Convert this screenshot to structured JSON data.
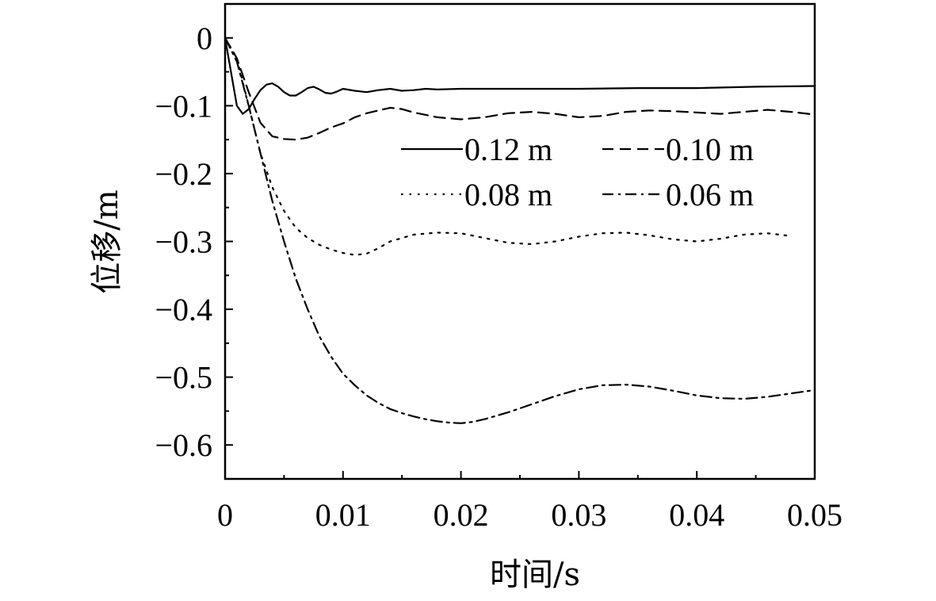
{
  "chart_data": {
    "type": "line",
    "xlabel": "时间/s",
    "ylabel": "位移/m",
    "xlim": [
      0,
      0.05
    ],
    "ylim": [
      -0.65,
      0.05
    ],
    "xticks": [
      0,
      0.01,
      0.02,
      0.03,
      0.04,
      0.05
    ],
    "xtick_labels": [
      "0",
      "0.01",
      "0.02",
      "0.03",
      "0.04",
      "0.05"
    ],
    "yticks": [
      0,
      -0.1,
      -0.2,
      -0.3,
      -0.4,
      -0.5,
      -0.6
    ],
    "ytick_labels": [
      "0",
      "−0.1",
      "−0.2",
      "−0.3",
      "−0.4",
      "−0.5",
      "−0.6"
    ],
    "grid": false,
    "legend_position": "top-right",
    "series": [
      {
        "name": "0.12 m",
        "style": "solid",
        "x": [
          0,
          0.0005,
          0.001,
          0.0015,
          0.002,
          0.0025,
          0.003,
          0.0035,
          0.004,
          0.0045,
          0.005,
          0.0055,
          0.006,
          0.0065,
          0.007,
          0.0075,
          0.008,
          0.0085,
          0.009,
          0.0095,
          0.01,
          0.011,
          0.012,
          0.013,
          0.014,
          0.015,
          0.016,
          0.017,
          0.018,
          0.02,
          0.025,
          0.03,
          0.035,
          0.04,
          0.045,
          0.05
        ],
        "y": [
          0,
          -0.05,
          -0.1,
          -0.112,
          -0.105,
          -0.09,
          -0.077,
          -0.069,
          -0.067,
          -0.072,
          -0.08,
          -0.085,
          -0.085,
          -0.08,
          -0.074,
          -0.072,
          -0.076,
          -0.081,
          -0.082,
          -0.079,
          -0.075,
          -0.078,
          -0.08,
          -0.077,
          -0.075,
          -0.078,
          -0.077,
          -0.075,
          -0.076,
          -0.075,
          -0.075,
          -0.075,
          -0.074,
          -0.074,
          -0.072,
          -0.071
        ]
      },
      {
        "name": "0.10 m",
        "style": "dashed",
        "x": [
          0,
          0.001,
          0.002,
          0.003,
          0.004,
          0.005,
          0.006,
          0.007,
          0.008,
          0.009,
          0.01,
          0.011,
          0.012,
          0.013,
          0.014,
          0.015,
          0.016,
          0.018,
          0.02,
          0.022,
          0.024,
          0.026,
          0.028,
          0.03,
          0.032,
          0.034,
          0.036,
          0.038,
          0.04,
          0.042,
          0.044,
          0.046,
          0.048,
          0.05
        ],
        "y": [
          0,
          -0.03,
          -0.08,
          -0.125,
          -0.145,
          -0.149,
          -0.15,
          -0.147,
          -0.14,
          -0.132,
          -0.126,
          -0.117,
          -0.111,
          -0.107,
          -0.103,
          -0.105,
          -0.11,
          -0.117,
          -0.12,
          -0.117,
          -0.111,
          -0.109,
          -0.112,
          -0.117,
          -0.115,
          -0.109,
          -0.107,
          -0.108,
          -0.11,
          -0.112,
          -0.109,
          -0.106,
          -0.109,
          -0.113
        ]
      },
      {
        "name": "0.08 m",
        "style": "dotted",
        "x": [
          0,
          0.001,
          0.002,
          0.003,
          0.004,
          0.005,
          0.006,
          0.007,
          0.008,
          0.009,
          0.01,
          0.011,
          0.012,
          0.013,
          0.014,
          0.015,
          0.016,
          0.018,
          0.02,
          0.022,
          0.024,
          0.026,
          0.028,
          0.03,
          0.032,
          0.034,
          0.036,
          0.038,
          0.04,
          0.042,
          0.044,
          0.046,
          0.048
        ],
        "y": [
          0,
          -0.03,
          -0.1,
          -0.17,
          -0.22,
          -0.255,
          -0.28,
          -0.295,
          -0.305,
          -0.312,
          -0.317,
          -0.32,
          -0.318,
          -0.31,
          -0.3,
          -0.295,
          -0.29,
          -0.287,
          -0.288,
          -0.295,
          -0.302,
          -0.304,
          -0.3,
          -0.293,
          -0.288,
          -0.287,
          -0.291,
          -0.297,
          -0.3,
          -0.296,
          -0.29,
          -0.288,
          -0.292
        ]
      },
      {
        "name": "0.06 m",
        "style": "dashdot",
        "x": [
          0,
          0.001,
          0.002,
          0.003,
          0.004,
          0.005,
          0.006,
          0.007,
          0.008,
          0.009,
          0.01,
          0.011,
          0.012,
          0.013,
          0.014,
          0.015,
          0.016,
          0.017,
          0.018,
          0.019,
          0.02,
          0.021,
          0.022,
          0.024,
          0.026,
          0.028,
          0.03,
          0.032,
          0.034,
          0.036,
          0.038,
          0.04,
          0.042,
          0.044,
          0.046,
          0.048,
          0.05
        ],
        "y": [
          0,
          -0.035,
          -0.1,
          -0.17,
          -0.24,
          -0.3,
          -0.355,
          -0.4,
          -0.44,
          -0.47,
          -0.495,
          -0.512,
          -0.527,
          -0.538,
          -0.547,
          -0.553,
          -0.558,
          -0.562,
          -0.565,
          -0.567,
          -0.568,
          -0.566,
          -0.562,
          -0.552,
          -0.54,
          -0.528,
          -0.518,
          -0.512,
          -0.511,
          -0.514,
          -0.52,
          -0.527,
          -0.531,
          -0.532,
          -0.529,
          -0.524,
          -0.519
        ]
      }
    ]
  }
}
